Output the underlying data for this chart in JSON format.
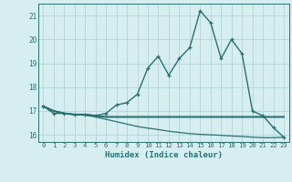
{
  "xlabel": "Humidex (Indice chaleur)",
  "background_color": "#d6eef0",
  "grid_color": "#b8d8dc",
  "line_color": "#2a7070",
  "x_values": [
    0,
    1,
    2,
    3,
    4,
    5,
    6,
    7,
    8,
    9,
    10,
    11,
    12,
    13,
    14,
    15,
    16,
    17,
    18,
    19,
    20,
    21,
    22,
    23
  ],
  "series1": [
    17.2,
    16.9,
    16.9,
    16.85,
    16.85,
    16.8,
    16.9,
    17.25,
    17.35,
    17.7,
    18.8,
    19.3,
    18.5,
    19.2,
    19.65,
    21.2,
    20.7,
    19.2,
    20.0,
    19.4,
    17.0,
    16.8,
    16.3,
    15.9
  ],
  "series2": [
    17.2,
    17.0,
    16.9,
    16.85,
    16.85,
    16.8,
    16.75,
    16.75,
    16.75,
    16.75,
    16.75,
    16.75,
    16.75,
    16.75,
    16.75,
    16.75,
    16.75,
    16.75,
    16.75,
    16.75,
    16.75,
    16.75,
    16.75,
    16.75
  ],
  "series3": [
    17.2,
    17.0,
    16.9,
    16.85,
    16.85,
    16.8,
    16.75,
    16.75,
    16.75,
    16.75,
    16.75,
    16.75,
    16.75,
    16.75,
    16.75,
    16.75,
    16.75,
    16.75,
    16.75,
    16.75,
    16.75,
    16.75,
    16.75,
    16.75
  ],
  "series4": [
    17.2,
    17.0,
    16.9,
    16.85,
    16.82,
    16.75,
    16.65,
    16.55,
    16.45,
    16.35,
    16.28,
    16.22,
    16.15,
    16.1,
    16.05,
    16.02,
    16.0,
    15.98,
    15.95,
    15.93,
    15.9,
    15.88,
    15.88,
    15.9
  ],
  "ylim": [
    15.7,
    21.5
  ],
  "yticks": [
    16,
    17,
    18,
    19,
    20,
    21
  ],
  "xticks": [
    0,
    1,
    2,
    3,
    4,
    5,
    6,
    7,
    8,
    9,
    10,
    11,
    12,
    13,
    14,
    15,
    16,
    17,
    18,
    19,
    20,
    21,
    22,
    23
  ]
}
